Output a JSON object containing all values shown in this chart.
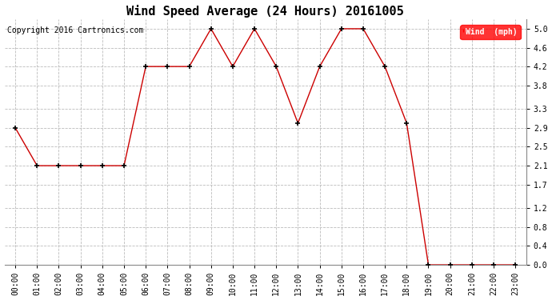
{
  "title": "Wind Speed Average (24 Hours) 20161005",
  "copyright_text": "Copyright 2016 Cartronics.com",
  "legend_label": "Wind  (mph)",
  "legend_bg": "#ff0000",
  "legend_text_color": "#ffffff",
  "x_labels": [
    "00:00",
    "01:00",
    "02:00",
    "03:00",
    "04:00",
    "05:00",
    "06:00",
    "07:00",
    "08:00",
    "09:00",
    "10:00",
    "11:00",
    "12:00",
    "13:00",
    "14:00",
    "15:00",
    "16:00",
    "17:00",
    "18:00",
    "19:00",
    "20:00",
    "21:00",
    "22:00",
    "23:00"
  ],
  "y_values": [
    2.9,
    2.1,
    2.1,
    2.1,
    2.1,
    2.1,
    4.2,
    4.2,
    4.2,
    5.0,
    4.2,
    5.0,
    4.2,
    3.0,
    4.2,
    5.0,
    5.0,
    4.2,
    3.0,
    0.0,
    0.0,
    0.0,
    0.0,
    0.0
  ],
  "line_color": "#cc0000",
  "marker": "+",
  "marker_color": "#000000",
  "marker_size": 5,
  "grid_color": "#bbbbbb",
  "grid_style": "--",
  "bg_color": "#ffffff",
  "plot_bg_color": "#ffffff",
  "ylim": [
    0.0,
    5.2
  ],
  "yticks": [
    0.0,
    0.4,
    0.8,
    1.2,
    1.7,
    2.1,
    2.5,
    2.9,
    3.3,
    3.8,
    4.2,
    4.6,
    5.0
  ],
  "ytick_labels": [
    "0.0",
    "0.4",
    "0.8",
    "1.2",
    "1.7",
    "2.1",
    "2.5",
    "2.9",
    "3.3",
    "3.8",
    "4.2",
    "4.6",
    "5.0"
  ],
  "title_fontsize": 11,
  "axis_fontsize": 7,
  "copyright_fontsize": 7
}
